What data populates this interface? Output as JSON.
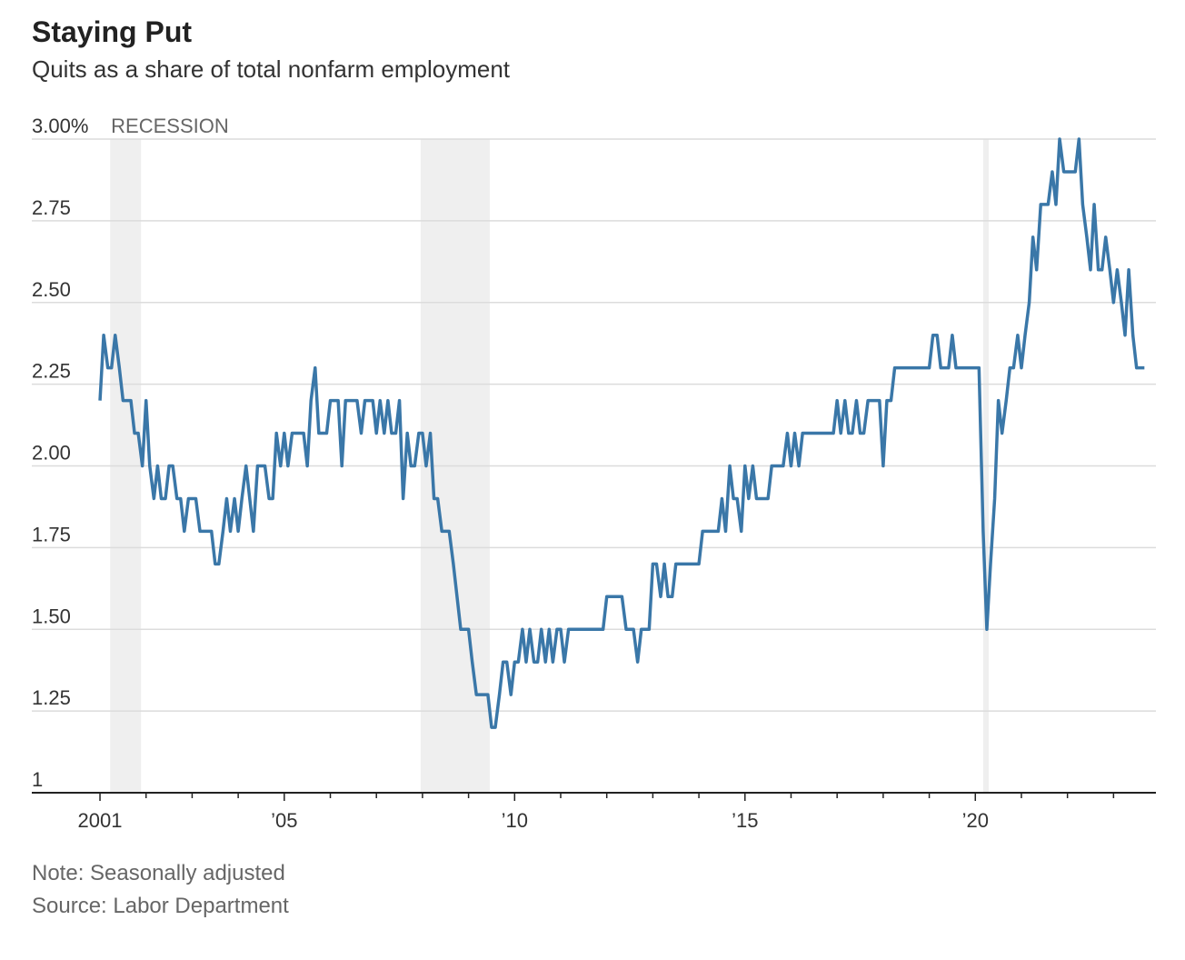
{
  "chart_data": {
    "type": "line",
    "title": "Staying Put",
    "subtitle": "Quits as a share of total nonfarm employment",
    "note": "Note: Seasonally adjusted",
    "source": "Source: Labor Department",
    "recession_label": "RECESSION",
    "recessions": [
      [
        2001.22,
        2001.89
      ],
      [
        2007.96,
        2009.46
      ],
      [
        2020.17,
        2020.29
      ]
    ],
    "color": "#3a77a8",
    "recession_color": "#efefef",
    "grid": true,
    "xlim": [
      1999.52,
      2023.92
    ],
    "ylim": [
      1,
      3
    ],
    "xticks": [
      {
        "value": 2001,
        "label": "2001"
      },
      {
        "value": 2005,
        "label": "’05"
      },
      {
        "value": 2010,
        "label": "’10"
      },
      {
        "value": 2015,
        "label": "’15"
      },
      {
        "value": 2020,
        "label": "’20"
      }
    ],
    "xminorticks": [
      2002,
      2003,
      2004,
      2006,
      2007,
      2008,
      2009,
      2011,
      2012,
      2013,
      2014,
      2016,
      2017,
      2018,
      2019,
      2021,
      2022,
      2023
    ],
    "yticks": [
      1,
      {
        "value": 1.25,
        "label": "1.25"
      },
      {
        "value": 1.5,
        "label": "1.50"
      },
      1.75,
      {
        "value": 2,
        "label": "2.00"
      },
      2.25,
      {
        "value": 2.5,
        "label": "2.50"
      },
      2.75,
      {
        "value": 3,
        "label": "3.00%"
      }
    ],
    "x": [
      2001.0,
      2001.08,
      2001.17,
      2001.25,
      2001.33,
      2001.42,
      2001.5,
      2001.58,
      2001.67,
      2001.75,
      2001.83,
      2001.92,
      2002.0,
      2002.08,
      2002.17,
      2002.25,
      2002.33,
      2002.42,
      2002.5,
      2002.58,
      2002.67,
      2002.75,
      2002.83,
      2002.92,
      2003.0,
      2003.08,
      2003.17,
      2003.25,
      2003.33,
      2003.42,
      2003.5,
      2003.58,
      2003.67,
      2003.75,
      2003.83,
      2003.92,
      2004.0,
      2004.08,
      2004.17,
      2004.25,
      2004.33,
      2004.42,
      2004.5,
      2004.58,
      2004.67,
      2004.75,
      2004.83,
      2004.92,
      2005.0,
      2005.08,
      2005.17,
      2005.25,
      2005.33,
      2005.42,
      2005.5,
      2005.58,
      2005.67,
      2005.75,
      2005.83,
      2005.92,
      2006.0,
      2006.08,
      2006.17,
      2006.25,
      2006.33,
      2006.42,
      2006.5,
      2006.58,
      2006.67,
      2006.75,
      2006.83,
      2006.92,
      2007.0,
      2007.08,
      2007.17,
      2007.25,
      2007.33,
      2007.42,
      2007.5,
      2007.58,
      2007.67,
      2007.75,
      2007.83,
      2007.92,
      2008.0,
      2008.08,
      2008.17,
      2008.25,
      2008.33,
      2008.42,
      2008.5,
      2008.58,
      2008.67,
      2008.75,
      2008.83,
      2008.92,
      2009.0,
      2009.08,
      2009.17,
      2009.25,
      2009.33,
      2009.42,
      2009.5,
      2009.58,
      2009.67,
      2009.75,
      2009.83,
      2009.92,
      2010.0,
      2010.08,
      2010.17,
      2010.25,
      2010.33,
      2010.42,
      2010.5,
      2010.58,
      2010.67,
      2010.75,
      2010.83,
      2010.92,
      2011.0,
      2011.08,
      2011.17,
      2011.25,
      2011.33,
      2011.42,
      2011.5,
      2011.58,
      2011.67,
      2011.75,
      2011.83,
      2011.92,
      2012.0,
      2012.08,
      2012.17,
      2012.25,
      2012.33,
      2012.42,
      2012.5,
      2012.58,
      2012.67,
      2012.75,
      2012.83,
      2012.92,
      2013.0,
      2013.08,
      2013.17,
      2013.25,
      2013.33,
      2013.42,
      2013.5,
      2013.58,
      2013.67,
      2013.75,
      2013.83,
      2013.92,
      2014.0,
      2014.08,
      2014.17,
      2014.25,
      2014.33,
      2014.42,
      2014.5,
      2014.58,
      2014.67,
      2014.75,
      2014.83,
      2014.92,
      2015.0,
      2015.08,
      2015.17,
      2015.25,
      2015.33,
      2015.42,
      2015.5,
      2015.58,
      2015.67,
      2015.75,
      2015.83,
      2015.92,
      2016.0,
      2016.08,
      2016.17,
      2016.25,
      2016.33,
      2016.42,
      2016.5,
      2016.58,
      2016.67,
      2016.75,
      2016.83,
      2016.92,
      2017.0,
      2017.08,
      2017.17,
      2017.25,
      2017.33,
      2017.42,
      2017.5,
      2017.58,
      2017.67,
      2017.75,
      2017.83,
      2017.92,
      2018.0,
      2018.08,
      2018.17,
      2018.25,
      2018.33,
      2018.42,
      2018.5,
      2018.58,
      2018.67,
      2018.75,
      2018.83,
      2018.92,
      2019.0,
      2019.08,
      2019.17,
      2019.25,
      2019.33,
      2019.42,
      2019.5,
      2019.58,
      2019.67,
      2019.75,
      2019.83,
      2019.92,
      2020.0,
      2020.08,
      2020.17,
      2020.25,
      2020.33,
      2020.42,
      2020.5,
      2020.58,
      2020.67,
      2020.75,
      2020.83,
      2020.92,
      2021.0,
      2021.08,
      2021.17,
      2021.25,
      2021.33,
      2021.42,
      2021.5,
      2021.58,
      2021.67,
      2021.75,
      2021.83,
      2021.92,
      2022.0,
      2022.08,
      2022.17,
      2022.25,
      2022.33,
      2022.42,
      2022.5,
      2022.58,
      2022.67,
      2022.75,
      2022.83,
      2022.92,
      2023.0,
      2023.08,
      2023.17,
      2023.25,
      2023.33,
      2023.42,
      2023.5,
      2023.58,
      2023.67
    ],
    "values": [
      2.2,
      2.4,
      2.3,
      2.3,
      2.4,
      2.3,
      2.2,
      2.2,
      2.2,
      2.1,
      2.1,
      2.0,
      2.2,
      2.0,
      1.9,
      2.0,
      1.9,
      1.9,
      2.0,
      2.0,
      1.9,
      1.9,
      1.8,
      1.9,
      1.9,
      1.9,
      1.8,
      1.8,
      1.8,
      1.8,
      1.7,
      1.7,
      1.8,
      1.9,
      1.8,
      1.9,
      1.8,
      1.9,
      2.0,
      1.9,
      1.8,
      2.0,
      2.0,
      2.0,
      1.9,
      1.9,
      2.1,
      2.0,
      2.1,
      2.0,
      2.1,
      2.1,
      2.1,
      2.1,
      2.0,
      2.2,
      2.3,
      2.1,
      2.1,
      2.1,
      2.2,
      2.2,
      2.2,
      2.0,
      2.2,
      2.2,
      2.2,
      2.2,
      2.1,
      2.2,
      2.2,
      2.2,
      2.1,
      2.2,
      2.1,
      2.2,
      2.1,
      2.1,
      2.2,
      1.9,
      2.1,
      2.0,
      2.0,
      2.1,
      2.1,
      2.0,
      2.1,
      1.9,
      1.9,
      1.8,
      1.8,
      1.8,
      1.7,
      1.6,
      1.5,
      1.5,
      1.5,
      1.4,
      1.3,
      1.3,
      1.3,
      1.3,
      1.2,
      1.2,
      1.3,
      1.4,
      1.4,
      1.3,
      1.4,
      1.4,
      1.5,
      1.4,
      1.5,
      1.4,
      1.4,
      1.5,
      1.4,
      1.5,
      1.4,
      1.5,
      1.5,
      1.4,
      1.5,
      1.5,
      1.5,
      1.5,
      1.5,
      1.5,
      1.5,
      1.5,
      1.5,
      1.5,
      1.6,
      1.6,
      1.6,
      1.6,
      1.6,
      1.5,
      1.5,
      1.5,
      1.4,
      1.5,
      1.5,
      1.5,
      1.7,
      1.7,
      1.6,
      1.7,
      1.6,
      1.6,
      1.7,
      1.7,
      1.7,
      1.7,
      1.7,
      1.7,
      1.7,
      1.8,
      1.8,
      1.8,
      1.8,
      1.8,
      1.9,
      1.8,
      2.0,
      1.9,
      1.9,
      1.8,
      2.0,
      1.9,
      2.0,
      1.9,
      1.9,
      1.9,
      1.9,
      2.0,
      2.0,
      2.0,
      2.0,
      2.1,
      2.0,
      2.1,
      2.0,
      2.1,
      2.1,
      2.1,
      2.1,
      2.1,
      2.1,
      2.1,
      2.1,
      2.1,
      2.2,
      2.1,
      2.2,
      2.1,
      2.1,
      2.2,
      2.1,
      2.1,
      2.2,
      2.2,
      2.2,
      2.2,
      2.0,
      2.2,
      2.2,
      2.3,
      2.3,
      2.3,
      2.3,
      2.3,
      2.3,
      2.3,
      2.3,
      2.3,
      2.3,
      2.4,
      2.4,
      2.3,
      2.3,
      2.3,
      2.4,
      2.3,
      2.3,
      2.3,
      2.3,
      2.3,
      2.3,
      2.3,
      1.8,
      1.5,
      1.7,
      1.9,
      2.2,
      2.1,
      2.2,
      2.3,
      2.3,
      2.4,
      2.3,
      2.4,
      2.5,
      2.7,
      2.6,
      2.8,
      2.8,
      2.8,
      2.9,
      2.8,
      3.0,
      2.9,
      2.9,
      2.9,
      2.9,
      3.0,
      2.8,
      2.7,
      2.6,
      2.8,
      2.6,
      2.6,
      2.7,
      2.6,
      2.5,
      2.6,
      2.5,
      2.4,
      2.6,
      2.4,
      2.3,
      2.3,
      2.3
    ]
  }
}
